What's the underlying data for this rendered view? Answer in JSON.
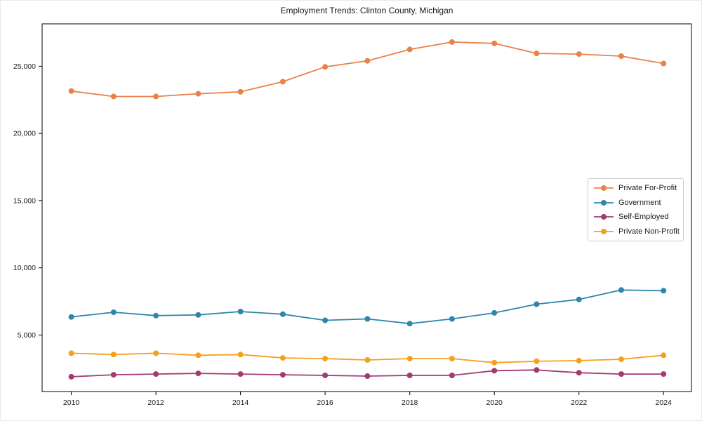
{
  "chart_data": {
    "type": "line",
    "title": "Employment Trends: Clinton County, Michigan",
    "x": [
      2010,
      2011,
      2012,
      2013,
      2014,
      2015,
      2016,
      2017,
      2018,
      2019,
      2020,
      2021,
      2022,
      2023,
      2024
    ],
    "xticks": [
      2010,
      2012,
      2014,
      2016,
      2018,
      2020,
      2022,
      2024
    ],
    "yticks": [
      5000,
      10000,
      15000,
      20000,
      25000
    ],
    "ytick_labels": [
      "5,000",
      "10,000",
      "15,000",
      "20,000",
      "25,000"
    ],
    "xlim": [
      2009.31,
      2024.66
    ],
    "ylim": [
      800,
      28150
    ],
    "grid": false,
    "legend_position": "center-right",
    "xlabel": "",
    "ylabel": "",
    "series": [
      {
        "name": "Private For-Profit",
        "color": "#E8824A",
        "values": [
          23150,
          22750,
          22750,
          22950,
          23100,
          23850,
          24950,
          25400,
          26250,
          26800,
          26700,
          25950,
          25900,
          25750,
          25200
        ]
      },
      {
        "name": "Government",
        "color": "#2E86AB",
        "values": [
          6350,
          6700,
          6450,
          6500,
          6750,
          6550,
          6100,
          6200,
          5850,
          6200,
          6650,
          7300,
          7650,
          8350,
          8300
        ]
      },
      {
        "name": "Self-Employed",
        "color": "#A23B72",
        "values": [
          1900,
          2050,
          2100,
          2150,
          2100,
          2050,
          2000,
          1950,
          2000,
          2000,
          2350,
          2400,
          2200,
          2100,
          2100
        ]
      },
      {
        "name": "Private Non-Profit",
        "color": "#F5A01E",
        "values": [
          3650,
          3550,
          3650,
          3500,
          3550,
          3300,
          3250,
          3150,
          3250,
          3250,
          2950,
          3050,
          3100,
          3200,
          3500
        ]
      }
    ]
  }
}
